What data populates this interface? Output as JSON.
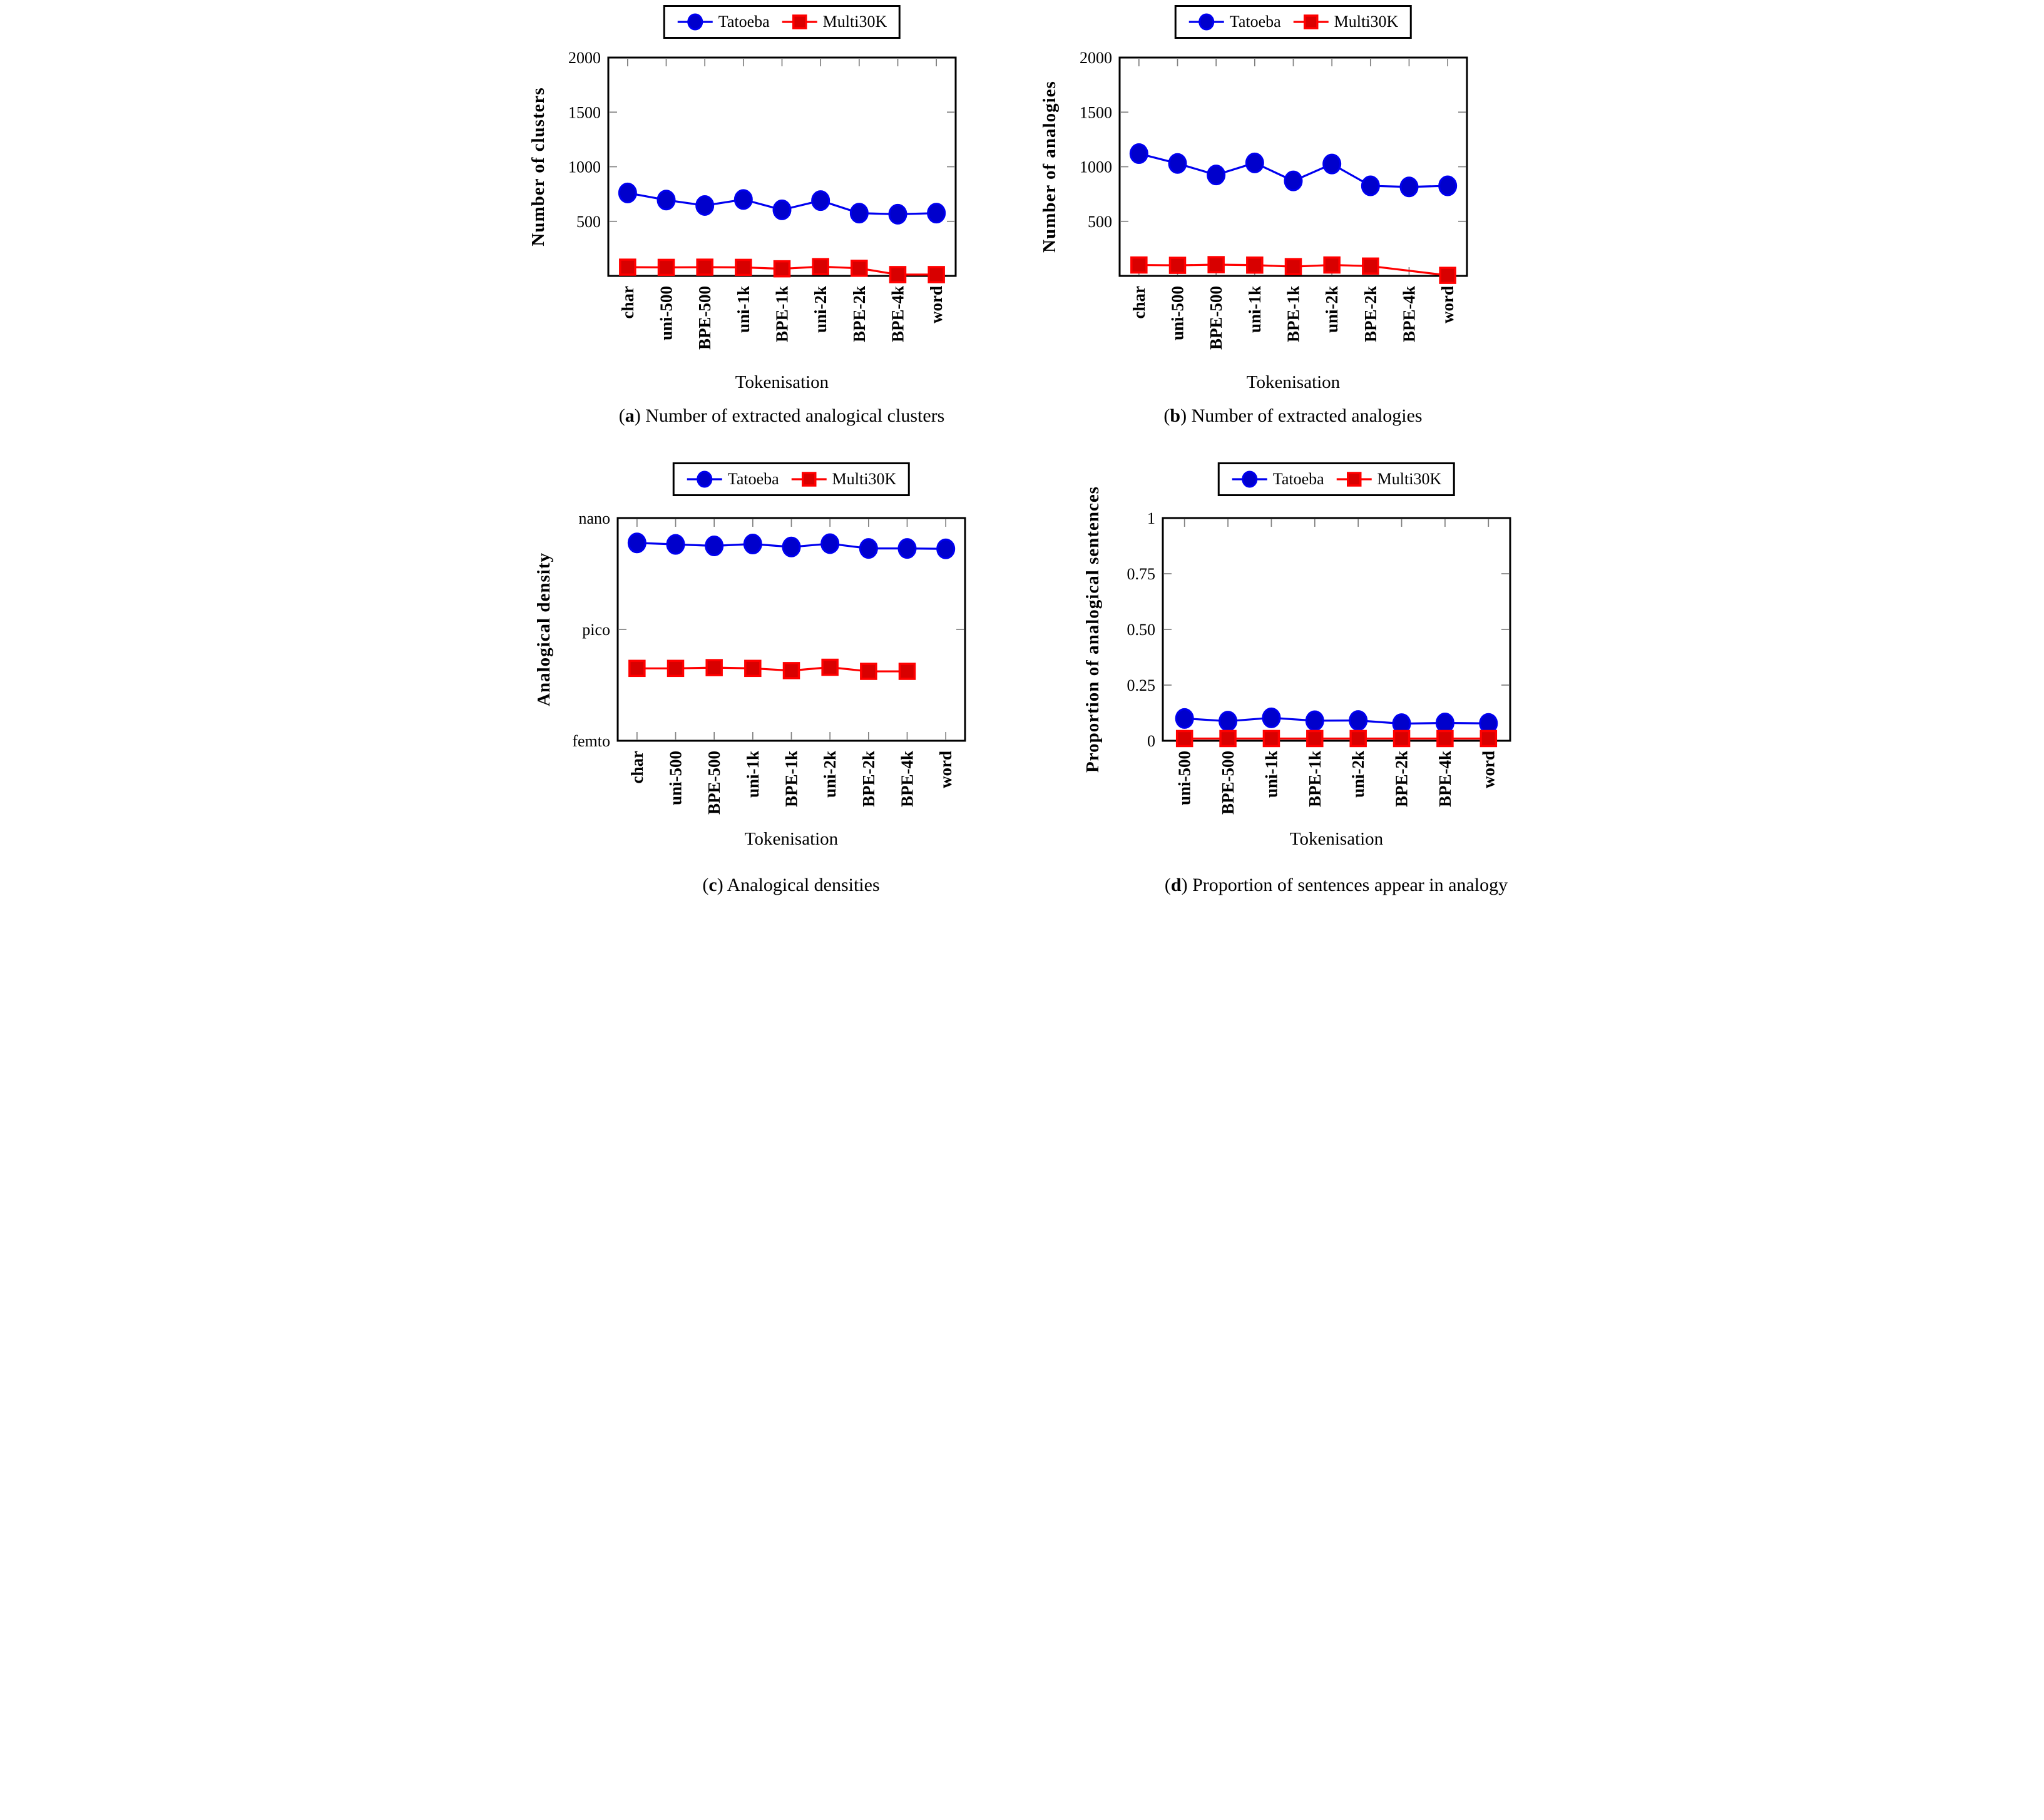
{
  "figure": {
    "xlabel": "Tokenisation",
    "legend_items": [
      {
        "label": "Tatoeba",
        "marker": "circle",
        "stroke": "#0000f0",
        "fill": "#0000cc"
      },
      {
        "label": "Multi30K",
        "marker": "square",
        "stroke": "#ff0000",
        "fill": "#d80000"
      }
    ],
    "colors": {
      "tick": "#808080",
      "frame": "#000000",
      "text": "#000000"
    }
  },
  "chart_data": [
    {
      "id": "a",
      "type": "line",
      "caption_letter": "a",
      "caption_text": "Number of extracted analogical clusters",
      "ylabel": "Number of clusters",
      "xlabel": "Tokenisation",
      "yscale": "linear",
      "ylim": [
        0,
        2000
      ],
      "grid": false,
      "legend_position": "top-center",
      "yticks": [
        {
          "value": 500,
          "label": "500"
        },
        {
          "value": 1000,
          "label": "1000"
        },
        {
          "value": 1500,
          "label": "1500"
        },
        {
          "value": 2000,
          "label": "2000"
        }
      ],
      "categories": [
        "char",
        "uni-500",
        "BPE-500",
        "uni-1k",
        "BPE-1k",
        "uni-2k",
        "BPE-2k",
        "BPE-4k",
        "word"
      ],
      "series": [
        {
          "name": "Tatoeba",
          "values": [
            760,
            695,
            645,
            700,
            605,
            690,
            575,
            565,
            575
          ]
        },
        {
          "name": "Multi30K",
          "values": [
            80,
            78,
            80,
            78,
            65,
            85,
            70,
            12,
            12
          ]
        }
      ]
    },
    {
      "id": "b",
      "type": "line",
      "caption_letter": "b",
      "caption_text": "Number of extracted analogies",
      "ylabel": "Number of analogies",
      "xlabel": "Tokenisation",
      "yscale": "linear",
      "ylim": [
        0,
        2000
      ],
      "grid": false,
      "legend_position": "top-center",
      "yticks": [
        {
          "value": 500,
          "label": "500"
        },
        {
          "value": 1000,
          "label": "1000"
        },
        {
          "value": 1500,
          "label": "1500"
        },
        {
          "value": 2000,
          "label": "2000"
        }
      ],
      "categories": [
        "char",
        "uni-500",
        "BPE-500",
        "uni-1k",
        "BPE-1k",
        "uni-2k",
        "BPE-2k",
        "BPE-4k",
        "word"
      ],
      "series": [
        {
          "name": "Tatoeba",
          "values": [
            1120,
            1030,
            925,
            1035,
            870,
            1025,
            825,
            815,
            825
          ]
        },
        {
          "name": "Multi30K",
          "values": [
            100,
            97,
            103,
            99,
            85,
            100,
            90,
            null,
            5
          ]
        }
      ]
    },
    {
      "id": "c",
      "type": "line",
      "caption_letter": "c",
      "caption_text": "Analogical densities",
      "ylabel": "Analogical density",
      "xlabel": "Tokenisation",
      "yscale": "log10",
      "yscale_note": "values stored as log10 of density; axis ticks are SI prefixes nano=1e-9, pico=1e-12, femto=1e-15",
      "ylim": [
        -15,
        -9
      ],
      "grid": false,
      "legend_position": "top-center",
      "yticks": [
        {
          "value": -9,
          "label": "nano"
        },
        {
          "value": -12,
          "label": "pico"
        },
        {
          "value": -15,
          "label": "femto"
        }
      ],
      "categories": [
        "char",
        "uni-500",
        "BPE-500",
        "uni-1k",
        "BPE-1k",
        "uni-2k",
        "BPE-2k",
        "BPE-4k",
        "word"
      ],
      "series": [
        {
          "name": "Tatoeba",
          "values": [
            -9.67,
            -9.71,
            -9.75,
            -9.7,
            -9.78,
            -9.69,
            -9.82,
            -9.82,
            -9.83
          ]
        },
        {
          "name": "Multi30K",
          "values": [
            -13.05,
            -13.05,
            -13.03,
            -13.05,
            -13.11,
            -13.02,
            -13.13,
            -13.13,
            null
          ]
        }
      ]
    },
    {
      "id": "d",
      "type": "line",
      "caption_letter": "d",
      "caption_text": "Proportion of sentences appear in analogy",
      "ylabel": "Proportion of analogical sentences",
      "xlabel": "Tokenisation",
      "yscale": "linear",
      "ylim": [
        0,
        1
      ],
      "grid": false,
      "legend_position": "top-center",
      "yticks": [
        {
          "value": 0,
          "label": "0"
        },
        {
          "value": 0.25,
          "label": "0.25"
        },
        {
          "value": 0.5,
          "label": "0.50"
        },
        {
          "value": 0.75,
          "label": "0.75"
        },
        {
          "value": 1,
          "label": "1"
        }
      ],
      "categories": [
        "uni-500",
        "BPE-500",
        "uni-1k",
        "BPE-1k",
        "uni-2k",
        "BPE-2k",
        "BPE-4k",
        "word"
      ],
      "series": [
        {
          "name": "Tatoeba",
          "values": [
            0.1,
            0.088,
            0.103,
            0.09,
            0.091,
            0.077,
            0.08,
            0.078
          ]
        },
        {
          "name": "Multi30K",
          "values": [
            0.01,
            0.01,
            0.01,
            0.01,
            0.01,
            0.01,
            0.01,
            0.01
          ]
        }
      ]
    }
  ]
}
